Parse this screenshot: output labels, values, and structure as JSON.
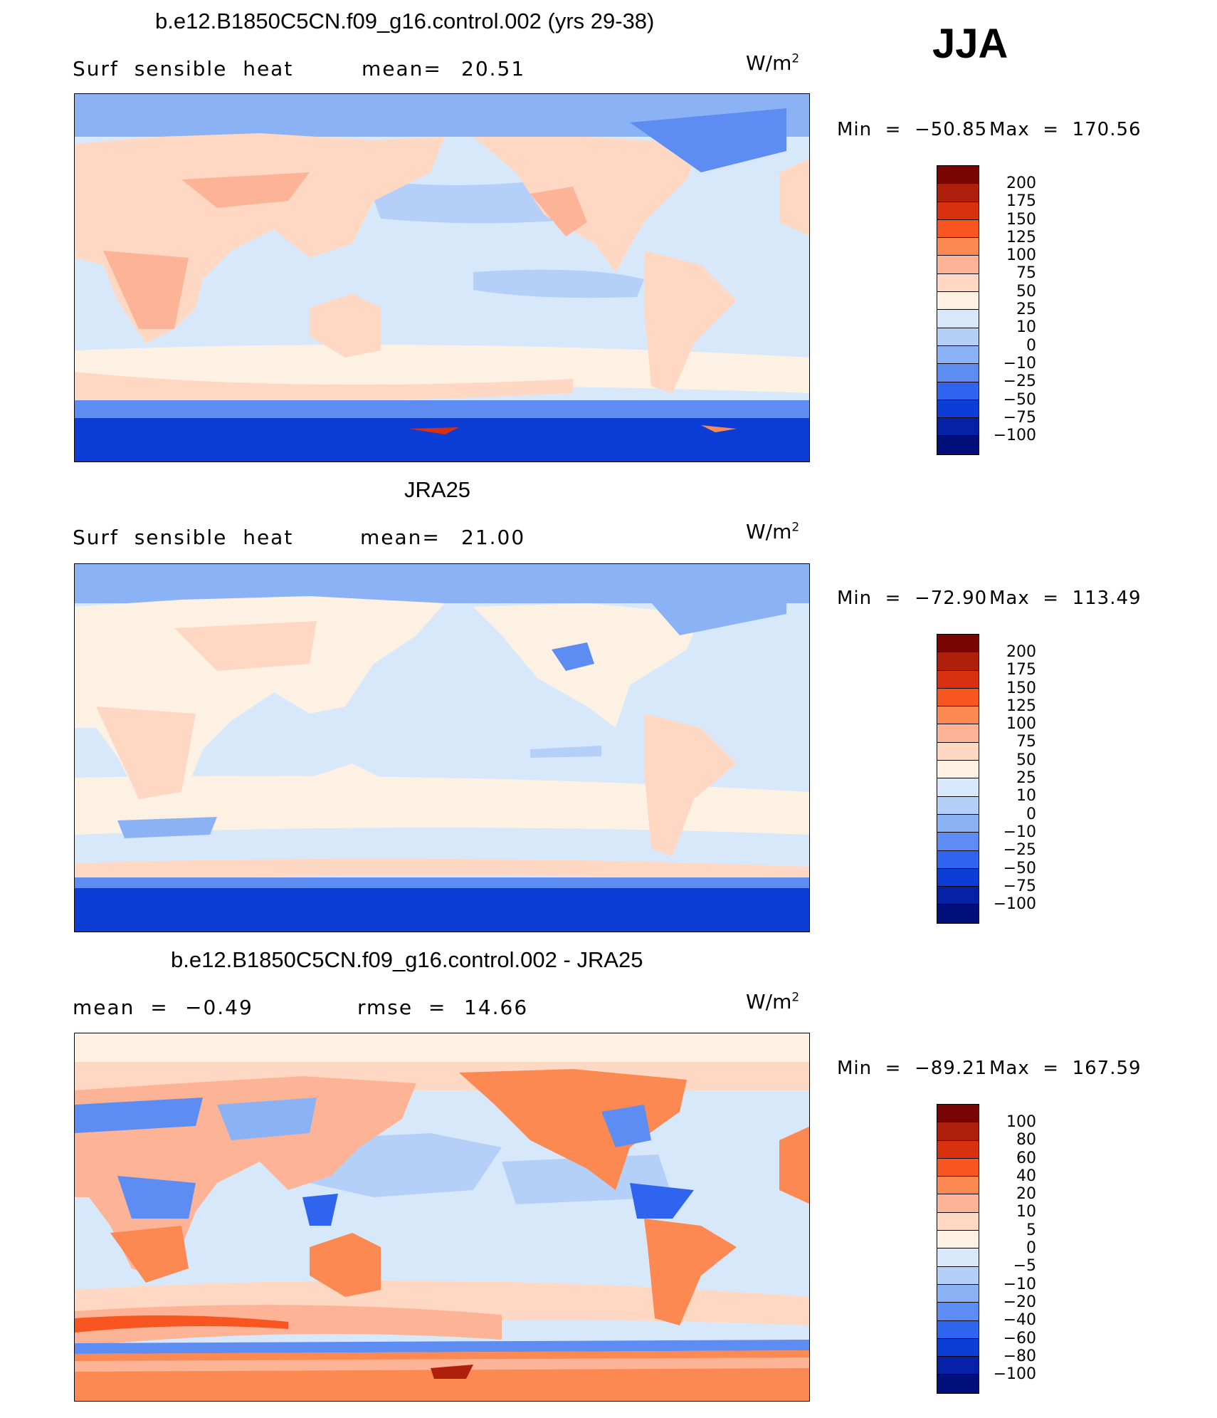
{
  "season": "JJA",
  "panels": [
    {
      "title": "b.e12.B1850C5CN.f09_g16.control.002 (yrs 29-38)",
      "left_label": "Surf  sensible  heat",
      "stat_label": "mean=",
      "stat_value": "20.51",
      "unit_base": "W/m",
      "unit_exp": "2",
      "min_label": "Min  =  −50.85",
      "max_label": "Max  =  170.56",
      "colorbar_ticks": [
        "200",
        "175",
        "150",
        "125",
        "100",
        "75",
        "50",
        "25",
        "10",
        "0",
        "−10",
        "−25",
        "−50",
        "−75",
        "−100"
      ]
    },
    {
      "title": "JRA25",
      "left_label": "Surf  sensible  heat",
      "stat_label": "mean=",
      "stat_value": "21.00",
      "unit_base": "W/m",
      "unit_exp": "2",
      "min_label": "Min  =  −72.90",
      "max_label": "Max  =  113.49",
      "colorbar_ticks": [
        "200",
        "175",
        "150",
        "125",
        "100",
        "75",
        "50",
        "25",
        "10",
        "0",
        "−10",
        "−25",
        "−50",
        "−75",
        "−100"
      ]
    },
    {
      "title": "b.e12.B1850C5CN.f09_g16.control.002 - JRA25",
      "left_label": "mean  =",
      "left_value": "−0.49",
      "stat_label": "rmse  =",
      "stat_value": "14.66",
      "unit_base": "W/m",
      "unit_exp": "2",
      "min_label": "Min  =  −89.21",
      "max_label": "Max  =  167.59",
      "colorbar_ticks": [
        "100",
        "80",
        "60",
        "40",
        "20",
        "10",
        "5",
        "0",
        "−5",
        "−10",
        "−20",
        "−40",
        "−60",
        "−80",
        "−100"
      ]
    }
  ],
  "colorbar_colors": [
    "#7a0403",
    "#b01e0c",
    "#d9300f",
    "#f85521",
    "#fc8852",
    "#fdb496",
    "#fed8c3",
    "#fdf1e4",
    "#d8e8fb",
    "#b4d0f8",
    "#8cb2f6",
    "#5d8df3",
    "#2f64ee",
    "#0d3dd7",
    "#0421a8",
    "#000f79"
  ],
  "colors": {
    "ocean_light": "#d8e8fb",
    "ocean_mid": "#b4d0f8",
    "ocean_blue": "#8cb2f6",
    "ant_blue": "#0d3dd7",
    "land_warm": "#fed8c3",
    "land_warmer": "#fdb496",
    "land_hot": "#fc8852",
    "land_pale": "#fdf1e4"
  }
}
